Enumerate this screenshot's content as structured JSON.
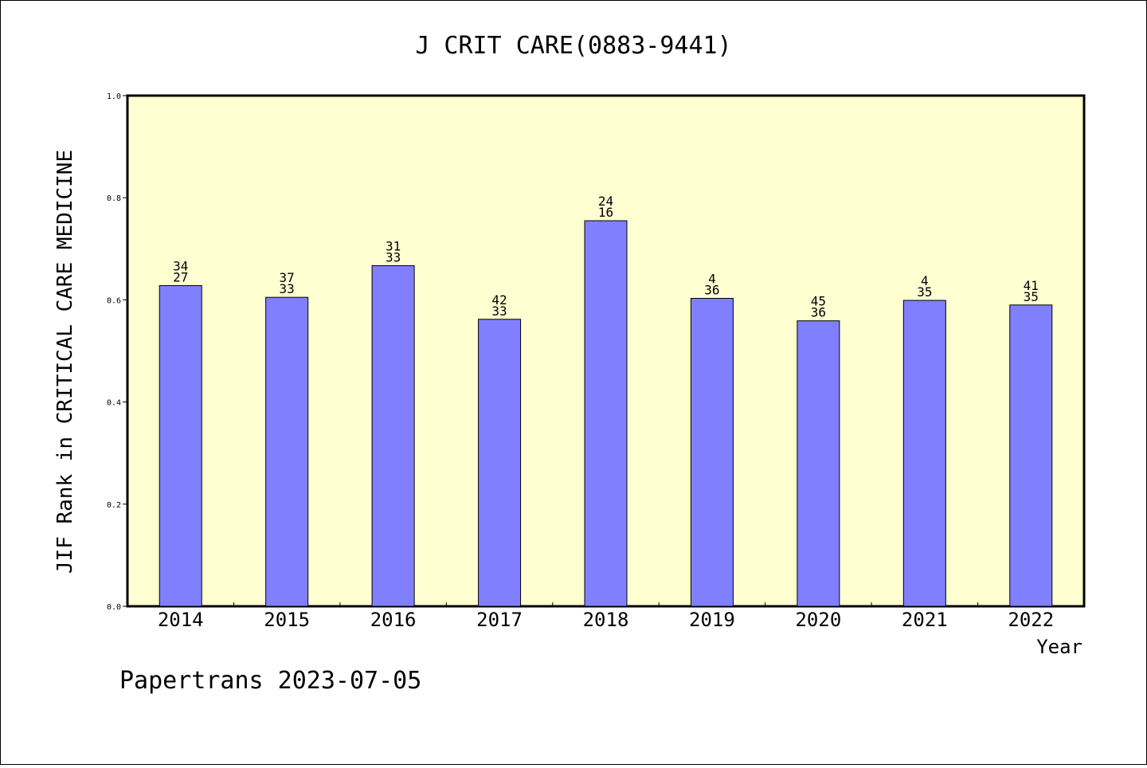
{
  "chart_data": {
    "type": "bar",
    "title": "J CRIT CARE(0883-9441)",
    "ylabel": "JIF Rank in CRITICAL CARE MEDICINE",
    "xlabel": "Year",
    "categories": [
      "2014",
      "2015",
      "2016",
      "2017",
      "2018",
      "2019",
      "2020",
      "2021",
      "2022"
    ],
    "values": [
      0.628,
      0.605,
      0.667,
      0.562,
      0.755,
      0.603,
      0.559,
      0.599,
      0.59
    ],
    "labels_top": [
      "34",
      "37",
      "31",
      "42",
      "24",
      "4",
      "45",
      "4",
      "41"
    ],
    "labels_bottom": [
      "27",
      "33",
      "33",
      "33",
      "16",
      "36",
      "36",
      "35",
      "35"
    ],
    "ylim": [
      0.0,
      1.0
    ],
    "yticks": [
      "0.0",
      "0.2",
      "0.4",
      "0.6",
      "0.8",
      "1.0"
    ],
    "colors": {
      "plot_bg": "#ffffd2",
      "bar": "#8080ff",
      "axis": "#000000"
    }
  },
  "footer": {
    "text": "Papertrans 2023-07-05"
  }
}
